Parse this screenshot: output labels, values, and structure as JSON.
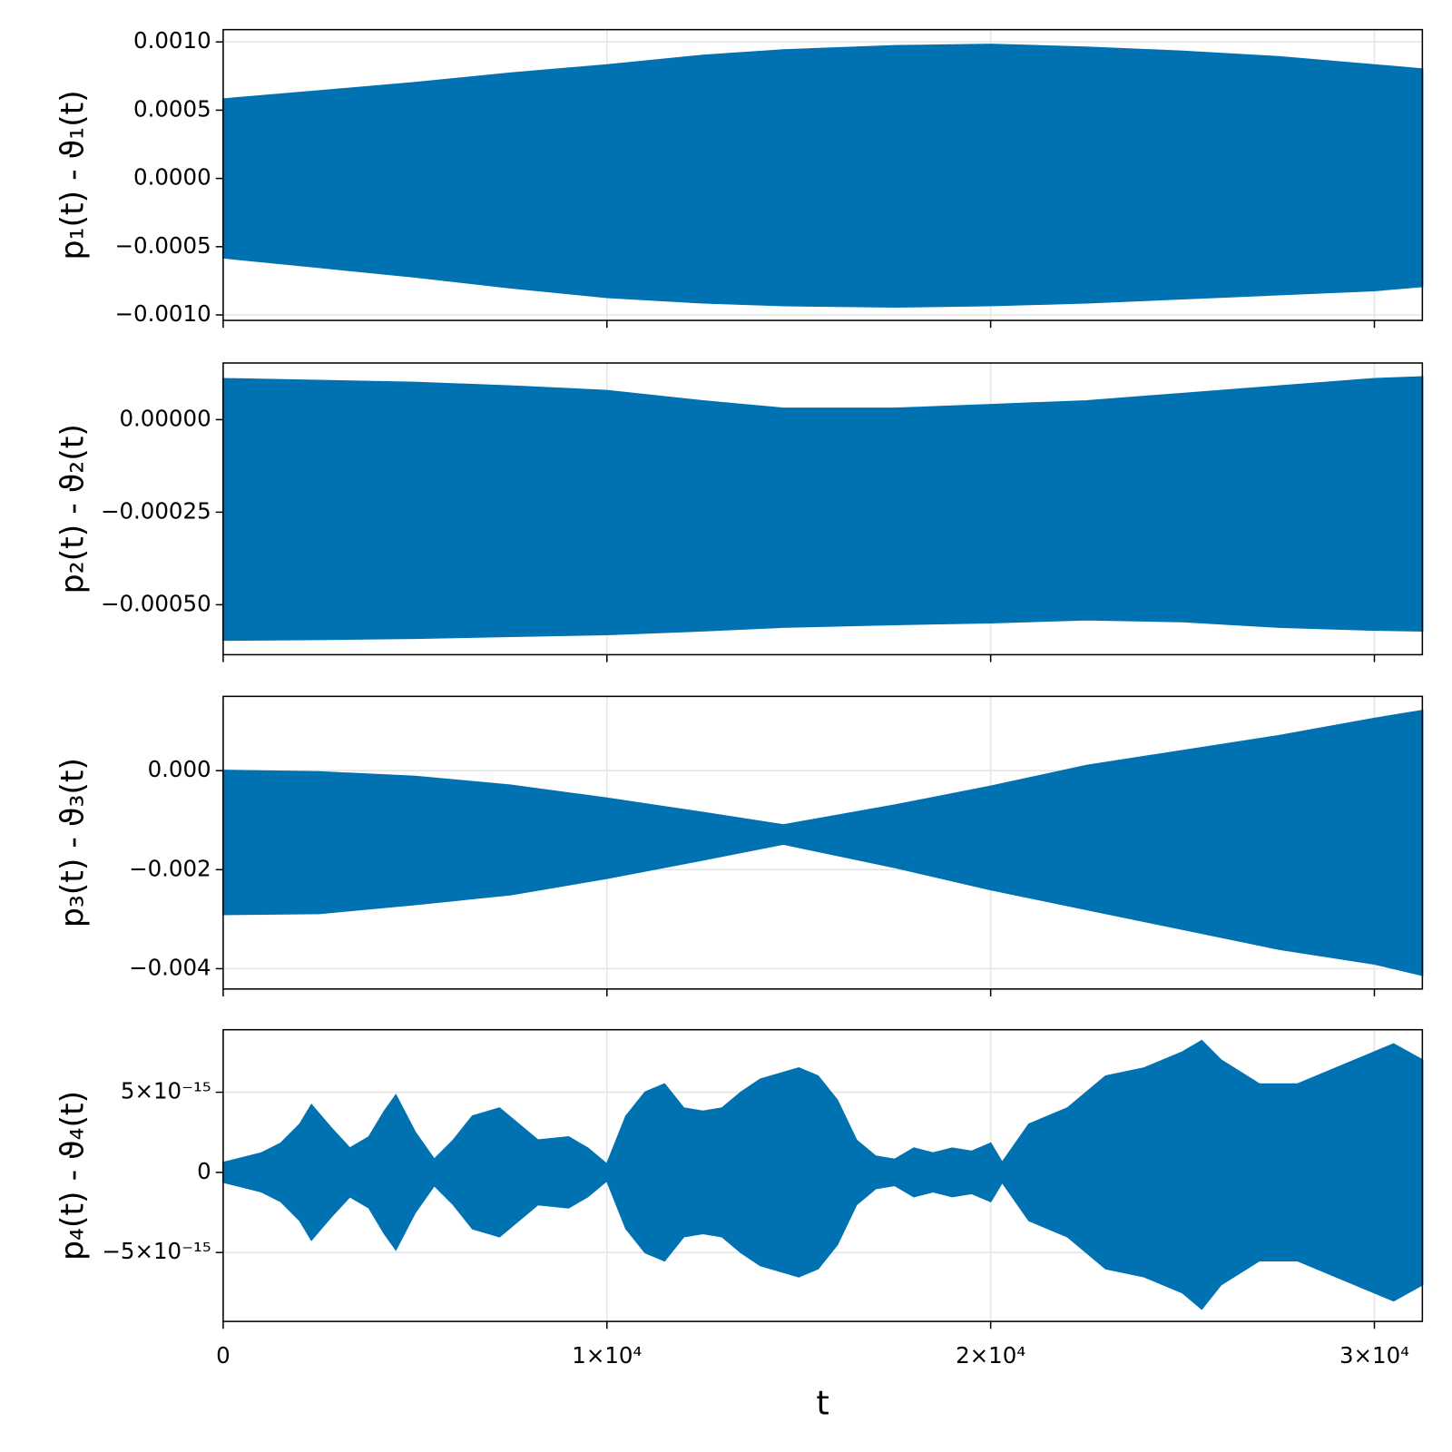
{
  "chart_data": [
    {
      "type": "band",
      "ylabel": "p₁(t) - ϑ₁(t)",
      "color": "#0072b2",
      "grid": true,
      "x": [
        0,
        2500,
        5000,
        7500,
        10000,
        12500,
        14600,
        17500,
        20000,
        22500,
        25000,
        27500,
        30000,
        31250
      ],
      "upper": [
        0.00058,
        0.00064,
        0.0007,
        0.00077,
        0.00083,
        0.0009,
        0.00094,
        0.00097,
        0.00098,
        0.00096,
        0.00093,
        0.00089,
        0.00083,
        0.0008
      ],
      "lower": [
        -0.00058,
        -0.00065,
        -0.00072,
        -0.0008,
        -0.00087,
        -0.00091,
        -0.00093,
        -0.00094,
        -0.00093,
        -0.00091,
        -0.00088,
        -0.00085,
        -0.00082,
        -0.00079
      ],
      "ylim": [
        -0.00104,
        0.00109
      ],
      "yticks": [
        {
          "value": 0.001,
          "label": "0.0010"
        },
        {
          "value": 0.0005,
          "label": "0.0005"
        },
        {
          "value": 0,
          "label": "0.0000"
        },
        {
          "value": -0.0005,
          "label": "−0.0005"
        },
        {
          "value": -0.001,
          "label": "−0.0010"
        }
      ]
    },
    {
      "type": "band",
      "ylabel": "p₂(t) - ϑ₂(t)",
      "color": "#0072b2",
      "grid": true,
      "x": [
        0,
        2500,
        5000,
        7500,
        10000,
        12500,
        14600,
        17500,
        20000,
        22500,
        25000,
        27500,
        30000,
        31250
      ],
      "upper": [
        0.00011,
        0.000105,
        0.0001,
        9e-05,
        7.8e-05,
        5e-05,
        3e-05,
        3e-05,
        4e-05,
        5e-05,
        7e-05,
        9e-05,
        0.00011,
        0.000115
      ],
      "lower": [
        -0.000595,
        -0.000593,
        -0.00059,
        -0.000585,
        -0.00058,
        -0.00057,
        -0.00056,
        -0.000553,
        -0.000548,
        -0.00054,
        -0.000545,
        -0.00056,
        -0.000568,
        -0.00057
      ],
      "ylim": [
        -0.000635,
        0.000153
      ],
      "yticks": [
        {
          "value": 0,
          "label": "0.00000"
        },
        {
          "value": -0.00025,
          "label": "−0.00025"
        },
        {
          "value": -0.0005,
          "label": "−0.00050"
        }
      ]
    },
    {
      "type": "band",
      "ylabel": "p₃(t) - ϑ₃(t)",
      "color": "#0072b2",
      "grid": true,
      "x": [
        0,
        2500,
        5000,
        7500,
        10000,
        12500,
        14600,
        17500,
        20000,
        22500,
        25000,
        27500,
        30000,
        31250
      ],
      "upper": [
        0,
        -3e-05,
        -0.00012,
        -0.0003,
        -0.00056,
        -0.00085,
        -0.0011,
        -0.0007,
        -0.00032,
        0.0001,
        0.0004,
        0.0007,
        0.00105,
        0.00121
      ],
      "lower": [
        -0.0029,
        -0.00288,
        -0.0027,
        -0.0025,
        -0.00217,
        -0.0018,
        -0.00148,
        -0.00195,
        -0.0024,
        -0.0028,
        -0.0032,
        -0.0036,
        -0.0039,
        -0.00413
      ],
      "ylim": [
        -0.00441,
        0.0015
      ],
      "yticks": [
        {
          "value": 0,
          "label": "0.000"
        },
        {
          "value": -0.002,
          "label": "−0.002"
        },
        {
          "value": -0.004,
          "label": "−0.004"
        }
      ]
    },
    {
      "type": "band",
      "ylabel": "p₄(t) - ϑ₄(t)",
      "xlabel": "t",
      "color": "#0072b2",
      "grid": true,
      "x": [
        0,
        1000,
        1500,
        2000,
        2300,
        2800,
        3300,
        3800,
        4200,
        4500,
        5000,
        5500,
        6000,
        6500,
        7200,
        7800,
        8200,
        9000,
        9500,
        10000,
        10500,
        11000,
        11500,
        12000,
        12500,
        13000,
        13500,
        14000,
        15000,
        15500,
        16000,
        16500,
        17000,
        17500,
        18000,
        18500,
        19000,
        19500,
        20000,
        20300,
        21000,
        22000,
        23000,
        24000,
        25000,
        25500,
        26000,
        27000,
        28000,
        29000,
        30000,
        30500,
        31250
      ],
      "upper": [
        6e-16,
        1.2e-15,
        1.8e-15,
        3e-15,
        4.2e-15,
        2.8e-15,
        1.5e-15,
        2.2e-15,
        3.8e-15,
        4.8e-15,
        2.5e-15,
        8e-16,
        2e-15,
        3.5e-15,
        4e-15,
        2.8e-15,
        2e-15,
        2.2e-15,
        1.5e-15,
        5e-16,
        3.5e-15,
        5e-15,
        5.5e-15,
        4e-15,
        3.8e-15,
        4e-15,
        5e-15,
        5.8e-15,
        6.5e-15,
        6e-15,
        4.5e-15,
        2e-15,
        1e-15,
        8e-16,
        1.5e-15,
        1.2e-15,
        1.5e-15,
        1.3e-15,
        1.8e-15,
        6e-16,
        3e-15,
        4e-15,
        6e-15,
        6.5e-15,
        7.5e-15,
        8.2e-15,
        7e-15,
        5.5e-15,
        5.5e-15,
        6.5e-15,
        7.5e-15,
        8e-15,
        7e-15
      ],
      "lower": [
        -6e-16,
        -1.2e-15,
        -1.8e-15,
        -3e-15,
        -4.2e-15,
        -2.8e-15,
        -1.5e-15,
        -2.2e-15,
        -3.8e-15,
        -4.8e-15,
        -2.5e-15,
        -8e-16,
        -2e-15,
        -3.5e-15,
        -4e-15,
        -2.8e-15,
        -2e-15,
        -2.2e-15,
        -1.5e-15,
        -5e-16,
        -3.5e-15,
        -5e-15,
        -5.5e-15,
        -4e-15,
        -3.8e-15,
        -4e-15,
        -5e-15,
        -5.8e-15,
        -6.5e-15,
        -6e-15,
        -4.5e-15,
        -2e-15,
        -1e-15,
        -8e-16,
        -1.5e-15,
        -1.2e-15,
        -1.5e-15,
        -1.3e-15,
        -1.8e-15,
        -6e-16,
        -3e-15,
        -4e-15,
        -6e-15,
        -6.5e-15,
        -7.5e-15,
        -8.5e-15,
        -7e-15,
        -5.5e-15,
        -5.5e-15,
        -6.5e-15,
        -7.5e-15,
        -8e-15,
        -7e-15
      ],
      "ylim": [
        -9.3e-15,
        8.9e-15
      ],
      "yticks": [
        {
          "value": 5e-15,
          "label": "5×10⁻¹⁵"
        },
        {
          "value": 0,
          "label": "0"
        },
        {
          "value": -5e-15,
          "label": "−5×10⁻¹⁵"
        }
      ],
      "xlim": [
        0,
        31250
      ],
      "xticks": [
        0,
        {
          "value": 10000,
          "label": "1×10⁴"
        },
        {
          "value": 20000,
          "label": "2×10⁴"
        },
        {
          "value": 30000,
          "label": "3×10⁴"
        }
      ]
    }
  ]
}
